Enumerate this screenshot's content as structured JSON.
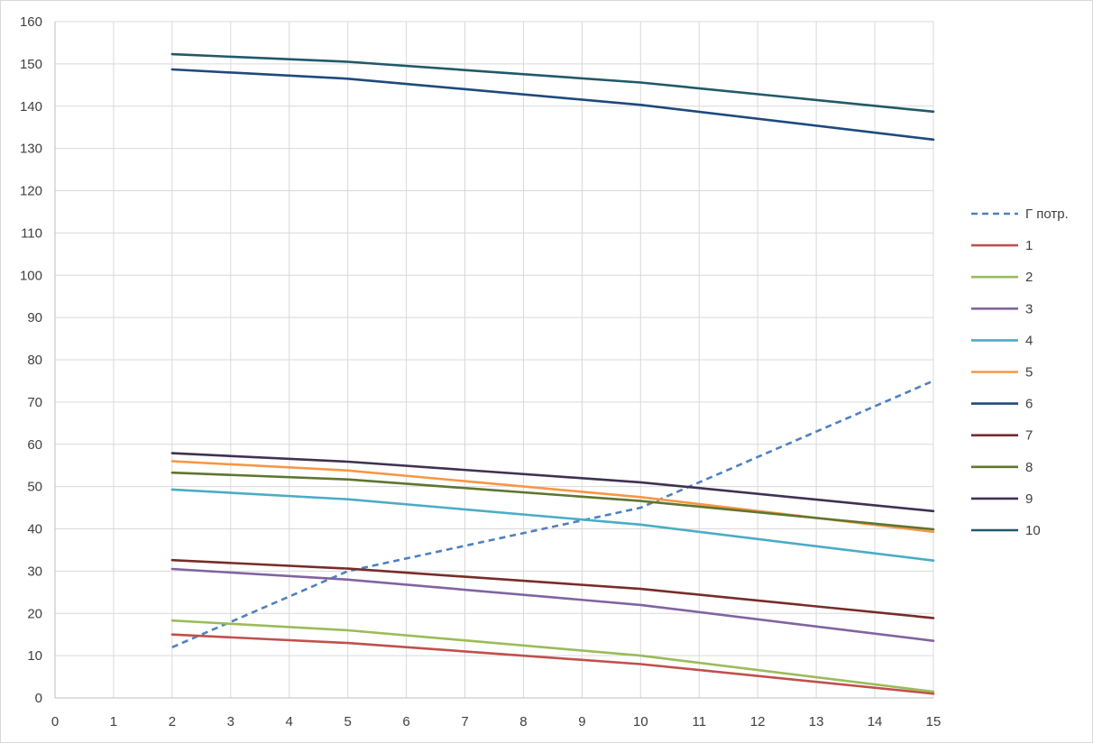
{
  "chart_data": {
    "type": "line",
    "title": "",
    "xlabel": "",
    "ylabel": "",
    "xlim": [
      0,
      15
    ],
    "ylim": [
      0,
      160
    ],
    "x_ticks": [
      0,
      1,
      2,
      3,
      4,
      5,
      6,
      7,
      8,
      9,
      10,
      11,
      12,
      13,
      14,
      15
    ],
    "y_ticks": [
      0,
      10,
      20,
      30,
      40,
      50,
      60,
      70,
      80,
      90,
      100,
      110,
      120,
      130,
      140,
      150,
      160
    ],
    "grid": true,
    "legend_position": "right",
    "x": [
      2,
      5,
      10,
      15
    ],
    "series": [
      {
        "name": "Г потр.",
        "color": "#4f81bd",
        "dashed": true,
        "values": [
          12,
          30,
          45,
          75
        ]
      },
      {
        "name": "1",
        "color": "#c0504d",
        "dashed": false,
        "values": [
          15,
          13,
          8,
          1
        ]
      },
      {
        "name": "2",
        "color": "#9bbb59",
        "dashed": false,
        "values": [
          18.3,
          16,
          10,
          1.5
        ]
      },
      {
        "name": "3",
        "color": "#8064a2",
        "dashed": false,
        "values": [
          30.5,
          28,
          22,
          13.5
        ]
      },
      {
        "name": "4",
        "color": "#4bacc6",
        "dashed": false,
        "values": [
          49.3,
          47,
          41,
          32.5
        ]
      },
      {
        "name": "5",
        "color": "#f79646",
        "dashed": false,
        "values": [
          56,
          53.8,
          47.5,
          39.3
        ]
      },
      {
        "name": "6",
        "color": "#1f497d",
        "dashed": false,
        "values": [
          148.7,
          146.5,
          140.3,
          132.1
        ]
      },
      {
        "name": "7",
        "color": "#772c2a",
        "dashed": false,
        "values": [
          32.6,
          30.6,
          25.8,
          18.9
        ]
      },
      {
        "name": "8",
        "color": "#5f7530",
        "dashed": false,
        "values": [
          53.3,
          51.7,
          46.6,
          39.9
        ]
      },
      {
        "name": "9",
        "color": "#403152",
        "dashed": false,
        "values": [
          57.9,
          55.9,
          51,
          44.2
        ]
      },
      {
        "name": "10",
        "color": "#215968",
        "dashed": false,
        "values": [
          152.3,
          150.5,
          145.6,
          138.7
        ]
      }
    ]
  }
}
